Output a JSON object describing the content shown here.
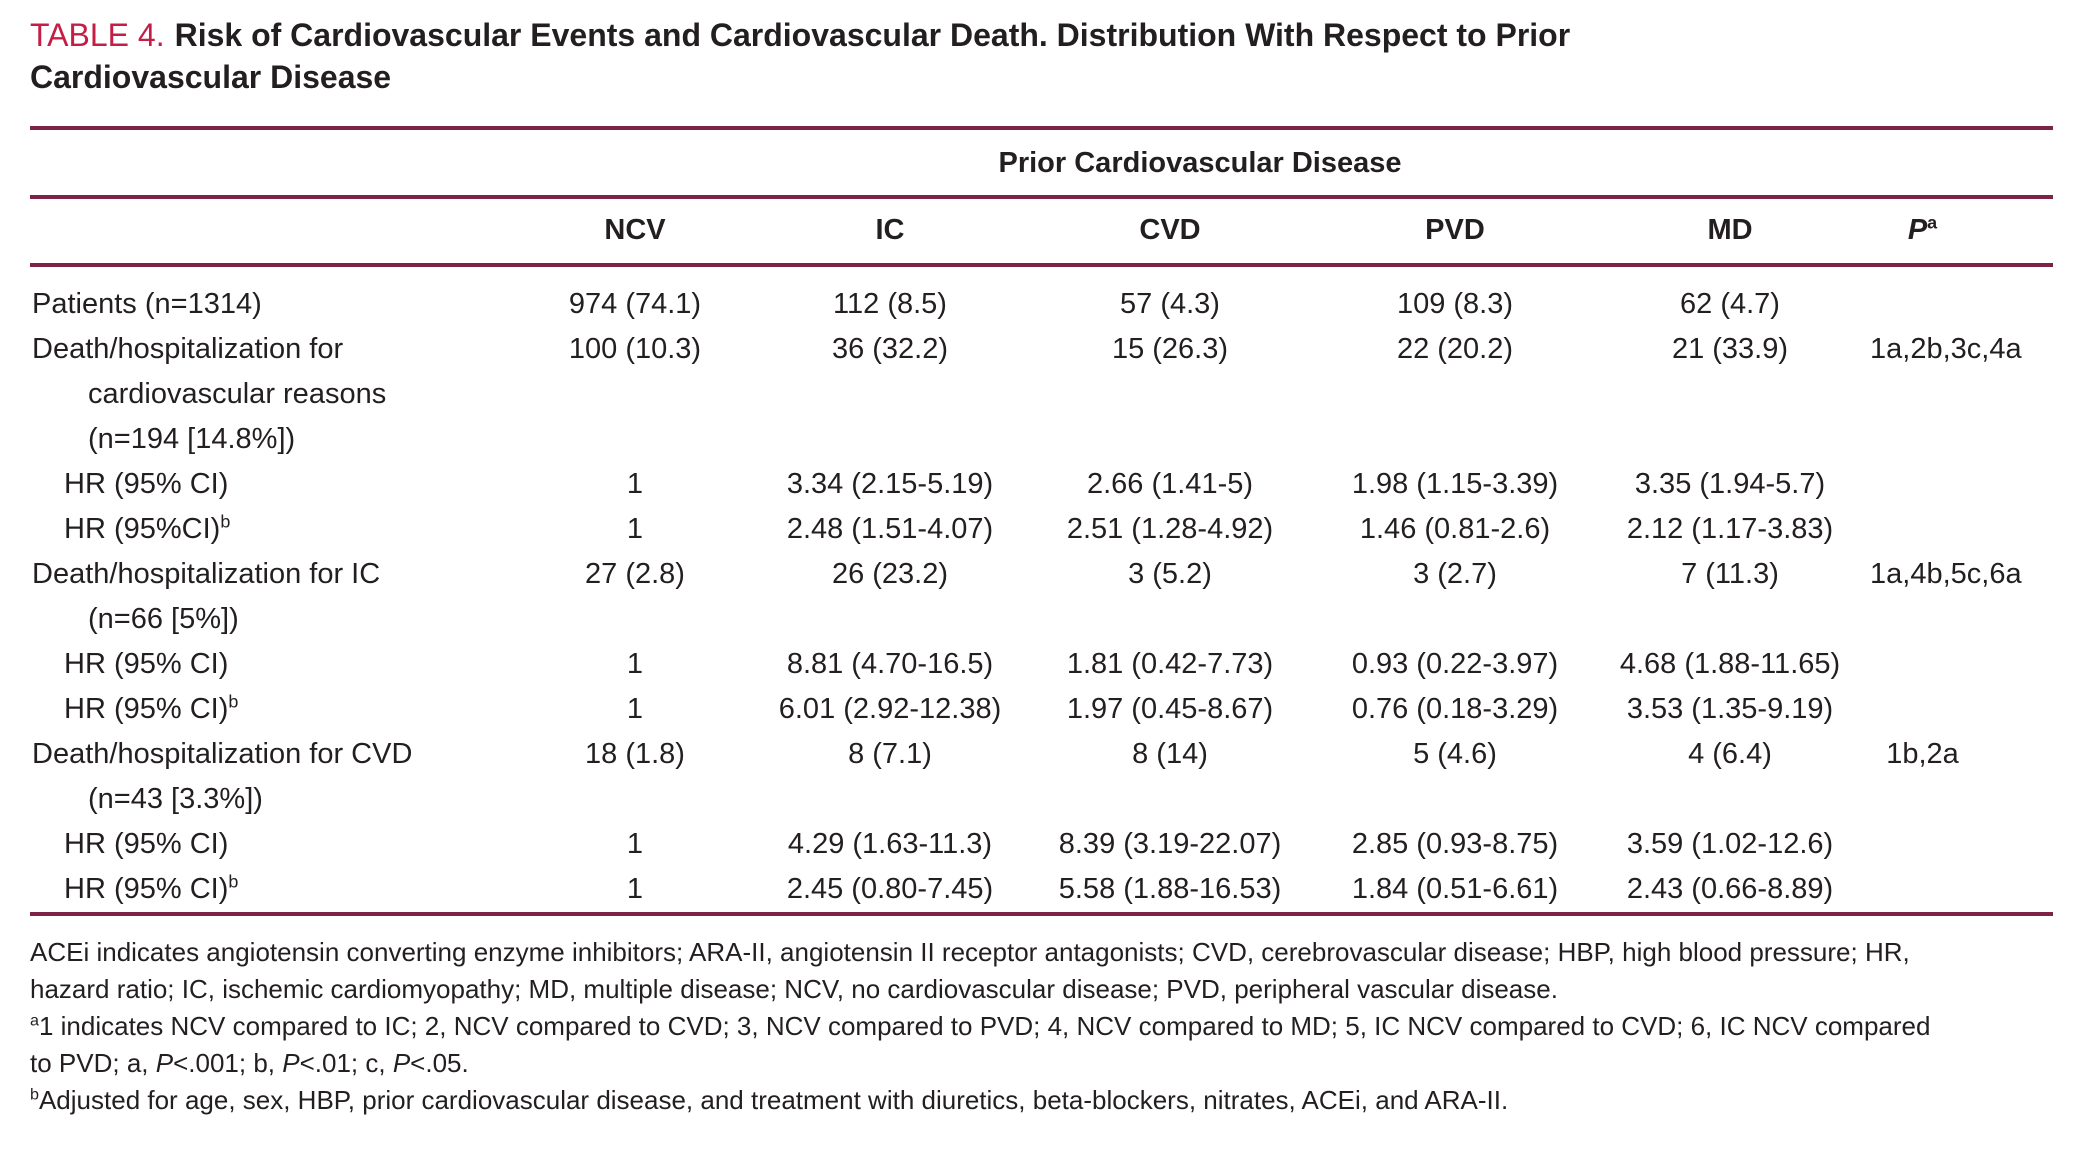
{
  "title": {
    "label": "TABLE 4.",
    "line1": "Risk of Cardiovascular Events and Cardiovascular Death. Distribution With Respect to Prior",
    "line2": "Cardiovascular Disease"
  },
  "table": {
    "group_header": "Prior Cardiovascular Disease",
    "columns": [
      "NCV",
      "IC",
      "CVD",
      "PVD",
      "MD"
    ],
    "p_column": {
      "label": "P",
      "sup": "a"
    },
    "rows": [
      {
        "label_lines": [
          {
            "text": "Patients (n=1314)",
            "indent": 0
          }
        ],
        "cells": [
          "974 (74.1)",
          "112 (8.5)",
          "57 (4.3)",
          "109 (8.3)",
          "62 (4.7)",
          ""
        ]
      },
      {
        "label_lines": [
          {
            "text": "Death/hospitalization for",
            "indent": 0
          },
          {
            "text": "cardiovascular reasons",
            "indent": 2
          },
          {
            "text": "(n=194 [14.8%])",
            "indent": 2
          }
        ],
        "cells": [
          "100 (10.3)",
          "36 (32.2)",
          "15 (26.3)",
          "22 (20.2)",
          "21 (33.9)",
          "1a,2b,3c,4a"
        ]
      },
      {
        "label_lines": [
          {
            "text": "HR (95% CI)",
            "indent": 1
          }
        ],
        "cells": [
          "1",
          "3.34 (2.15-5.19)",
          "2.66 (1.41-5)",
          "1.98 (1.15-3.39)",
          "3.35 (1.94-5.7)",
          ""
        ]
      },
      {
        "label_lines": [
          {
            "text": "HR (95%CI)",
            "sup": "b",
            "indent": 1
          }
        ],
        "cells": [
          "1",
          "2.48 (1.51-4.07)",
          "2.51 (1.28-4.92)",
          "1.46 (0.81-2.6)",
          "2.12 (1.17-3.83)",
          ""
        ]
      },
      {
        "label_lines": [
          {
            "text": "Death/hospitalization for IC",
            "indent": 0
          },
          {
            "text": "(n=66 [5%])",
            "indent": 2
          }
        ],
        "cells": [
          "27 (2.8)",
          "26 (23.2)",
          "3 (5.2)",
          "3 (2.7)",
          "7 (11.3)",
          "1a,4b,5c,6a"
        ]
      },
      {
        "label_lines": [
          {
            "text": "HR (95% CI)",
            "indent": 1
          }
        ],
        "cells": [
          "1",
          "8.81 (4.70-16.5)",
          "1.81 (0.42-7.73)",
          "0.93 (0.22-3.97)",
          "4.68 (1.88-11.65)",
          ""
        ]
      },
      {
        "label_lines": [
          {
            "text": "HR (95% CI)",
            "sup": "b",
            "indent": 1
          }
        ],
        "cells": [
          "1",
          "6.01 (2.92-12.38)",
          "1.97 (0.45-8.67)",
          "0.76 (0.18-3.29)",
          "3.53 (1.35-9.19)",
          ""
        ]
      },
      {
        "label_lines": [
          {
            "text": "Death/hospitalization for CVD",
            "indent": 0
          },
          {
            "text": "(n=43 [3.3%])",
            "indent": 2
          }
        ],
        "cells": [
          "18 (1.8)",
          "8 (7.1)",
          "8 (14)",
          "5 (4.6)",
          "4 (6.4)",
          "1b,2a"
        ]
      },
      {
        "label_lines": [
          {
            "text": "HR (95% CI)",
            "indent": 1
          }
        ],
        "cells": [
          "1",
          "4.29 (1.63-11.3)",
          "8.39 (3.19-22.07)",
          "2.85 (0.93-8.75)",
          "3.59 (1.02-12.6)",
          ""
        ]
      },
      {
        "label_lines": [
          {
            "text": "HR (95% CI)",
            "sup": "b",
            "indent": 1
          }
        ],
        "cells": [
          "1",
          "2.45 (0.80-7.45)",
          "5.58 (1.88-16.53)",
          "1.84 (0.51-6.61)",
          "2.43 (0.66-8.89)",
          ""
        ]
      }
    ]
  },
  "footnotes": {
    "lines": [
      [
        {
          "t": "ACEi indicates angiotensin converting enzyme inhibitors; ARA-II, angiotensin II receptor antagonists; CVD, cerebrovascular disease; HBP, high blood pressure; HR,"
        }
      ],
      [
        {
          "t": "hazard ratio; IC, ischemic cardiomyopathy; MD, multiple disease; NCV, no cardiovascular disease; PVD, peripheral vascular disease."
        }
      ],
      [
        {
          "t": "a",
          "style": "sup"
        },
        {
          "t": "1 indicates NCV compared to IC; 2, NCV compared to CVD; 3, NCV compared to PVD; 4, NCV compared to MD; 5, IC NCV compared to CVD; 6, IC NCV compared"
        }
      ],
      [
        {
          "t": "to PVD; a, "
        },
        {
          "t": "P",
          "style": "italic"
        },
        {
          "t": "<.001; b, "
        },
        {
          "t": "P",
          "style": "italic"
        },
        {
          "t": "<.01; c, "
        },
        {
          "t": "P",
          "style": "italic"
        },
        {
          "t": "<.05."
        }
      ],
      [
        {
          "t": "b",
          "style": "sup"
        },
        {
          "t": "Adjusted for age, sex, HBP, prior cardiovascular disease, and treatment with diuretics, beta-blockers, nitrates, ACEi, and ARA-II."
        }
      ]
    ]
  },
  "colors": {
    "accent_red": "#c41e47",
    "rule_maroon": "#7d2347",
    "text": "#231f20"
  }
}
